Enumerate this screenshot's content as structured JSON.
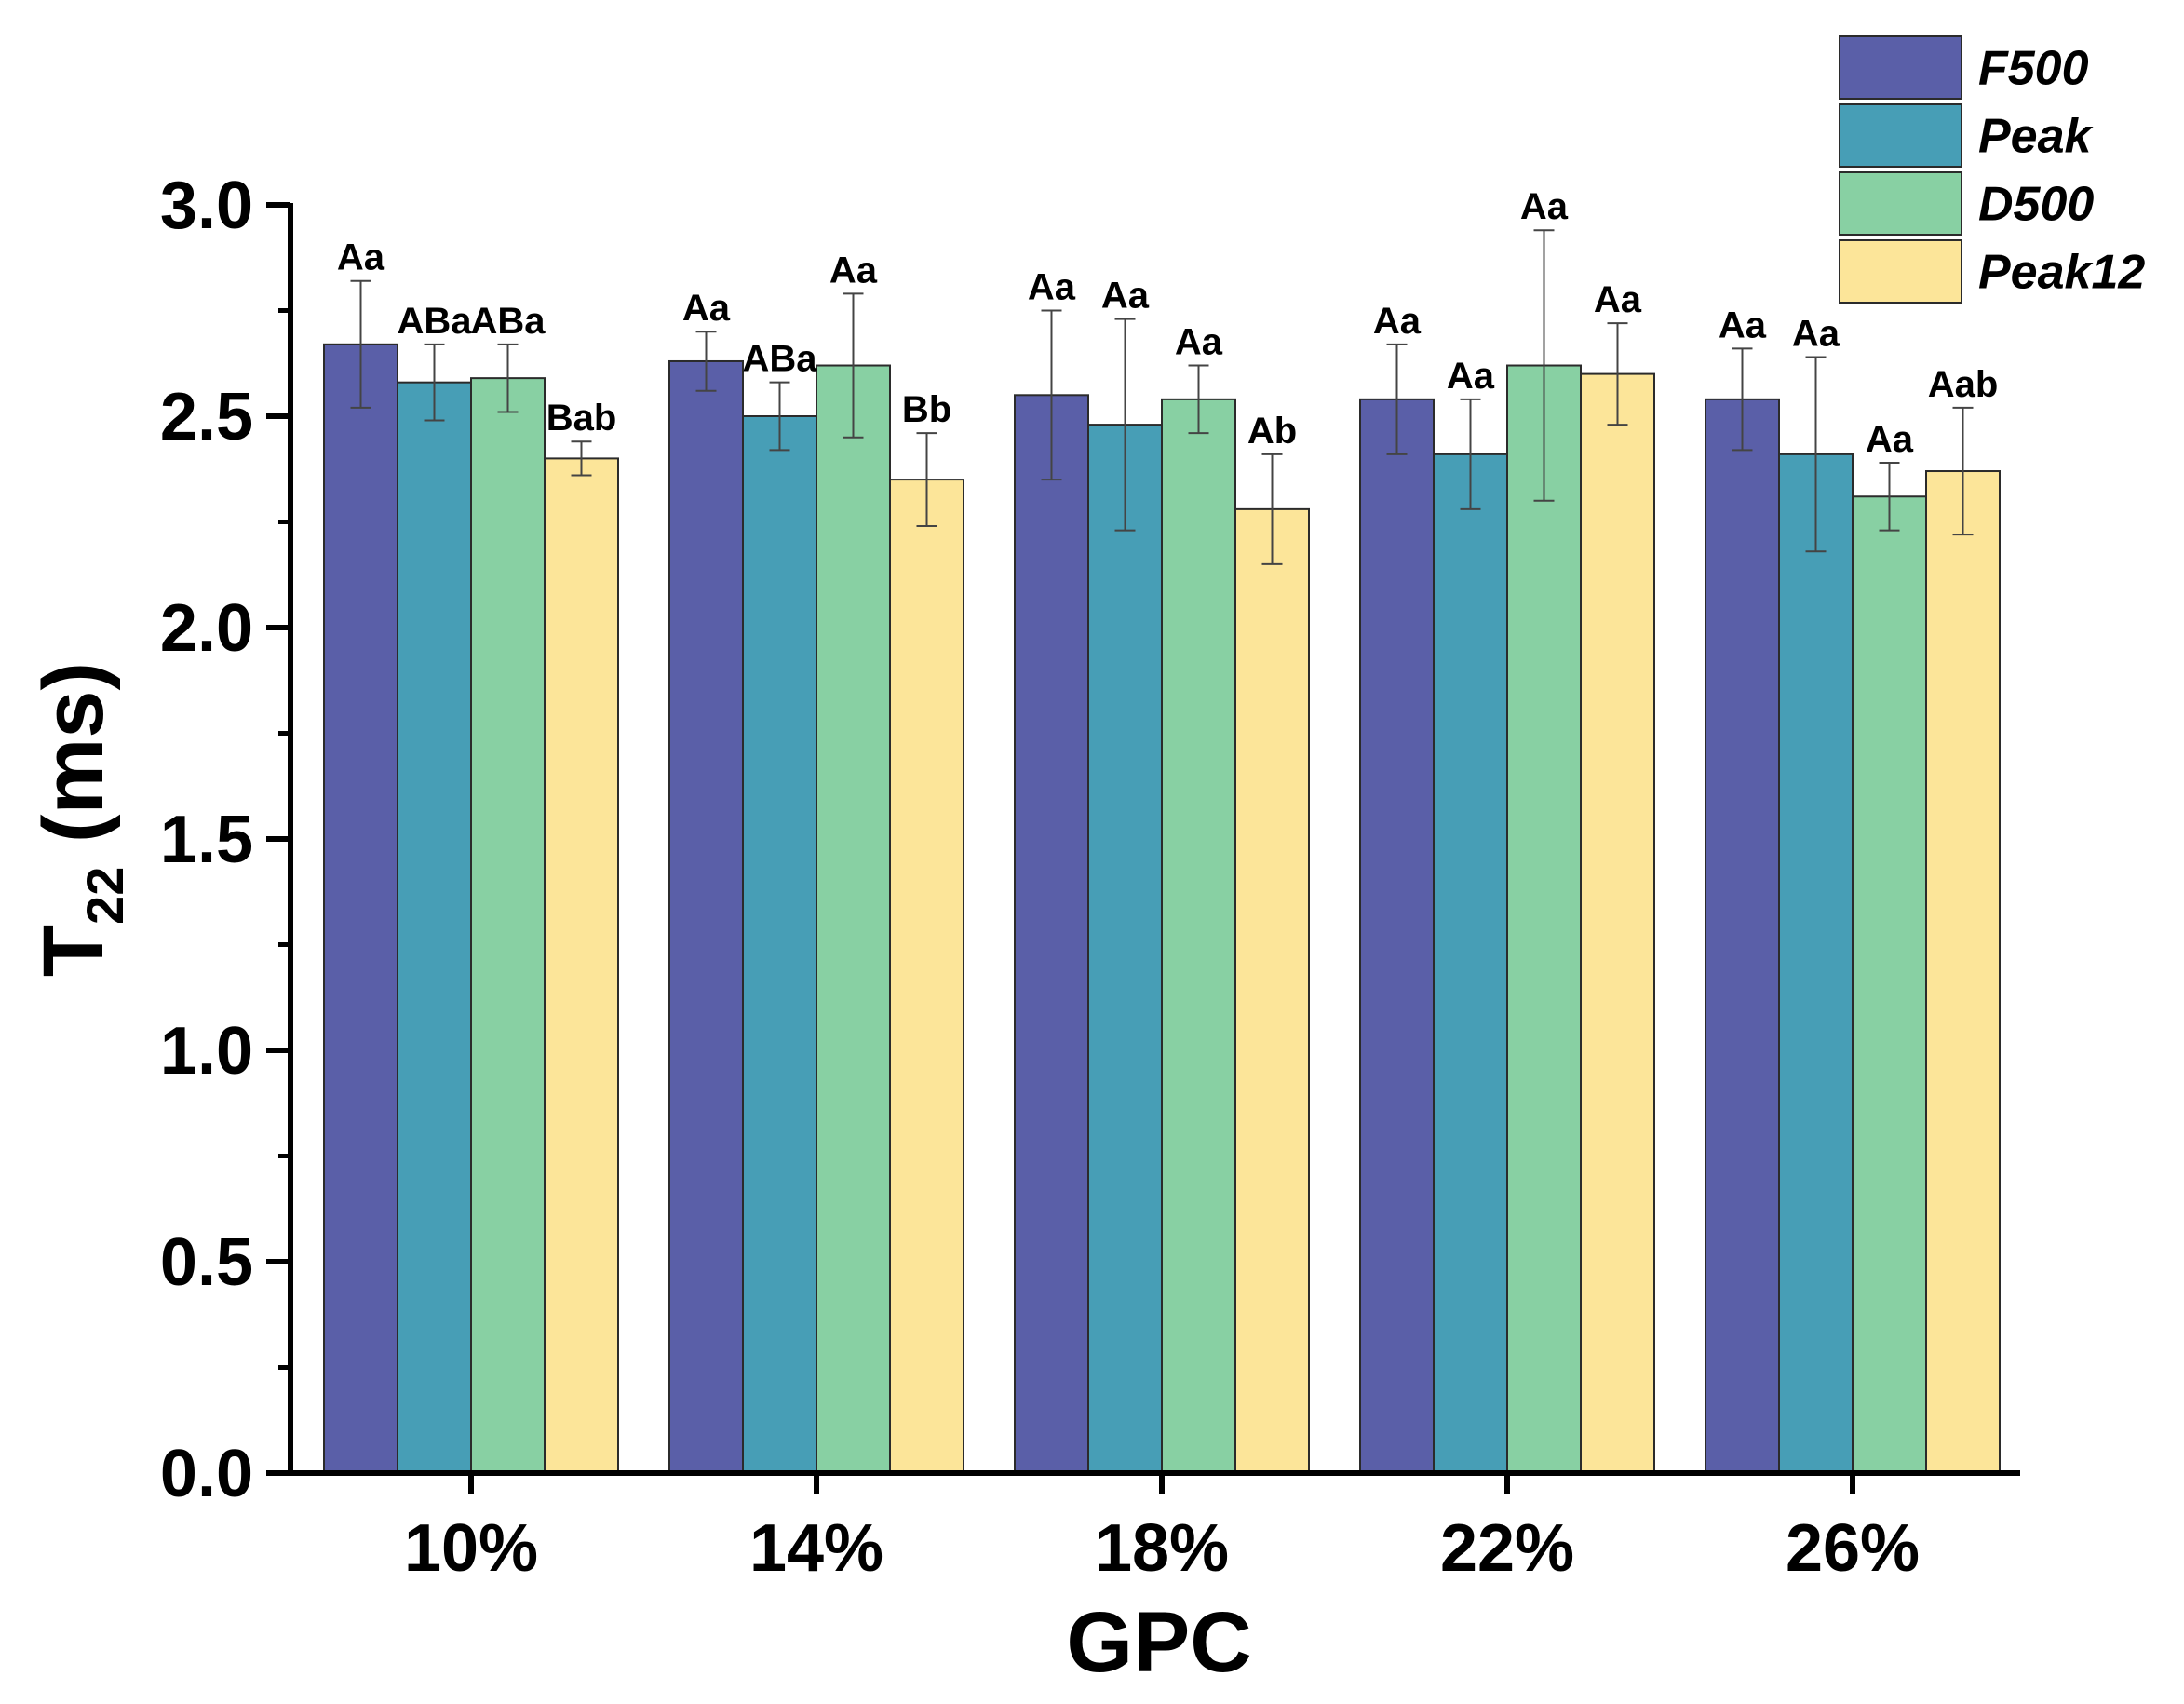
{
  "chart_data": {
    "type": "bar",
    "title": "",
    "xlabel": "GPC",
    "ylabel_main": "T",
    "ylabel_sub": "22",
    "ylabel_unit": " (ms)",
    "ylim": [
      0,
      3.0
    ],
    "y_ticks": [
      "0.0",
      "0.5",
      "1.0",
      "1.5",
      "2.0",
      "2.5",
      "3.0"
    ],
    "y_tick_values": [
      0,
      0.5,
      1.0,
      1.5,
      2.0,
      2.5,
      3.0
    ],
    "categories": [
      "10%",
      "14%",
      "18%",
      "22%",
      "26%"
    ],
    "legend_position": "top-right",
    "series": [
      {
        "name": "F500",
        "color": "#5A5FA8",
        "values": [
          2.67,
          2.63,
          2.55,
          2.54,
          2.54
        ],
        "errors": [
          0.15,
          0.07,
          0.2,
          0.13,
          0.12
        ],
        "labels": [
          "Aa",
          "Aa",
          "Aa",
          "Aa",
          "Aa"
        ]
      },
      {
        "name": "Peak",
        "color": "#479EB6",
        "values": [
          2.58,
          2.5,
          2.48,
          2.41,
          2.41
        ],
        "errors": [
          0.09,
          0.08,
          0.25,
          0.13,
          0.23
        ],
        "labels": [
          "ABa",
          "ABa",
          "Aa",
          "Aa",
          "Aa"
        ]
      },
      {
        "name": "D500",
        "color": "#88D0A3",
        "values": [
          2.59,
          2.62,
          2.54,
          2.62,
          2.31
        ],
        "errors": [
          0.08,
          0.17,
          0.08,
          0.32,
          0.08
        ],
        "labels": [
          "ABa",
          "Aa",
          "Aa",
          "Aa",
          "Aa"
        ]
      },
      {
        "name": "Peak12",
        "color": "#FCE599",
        "values": [
          2.4,
          2.35,
          2.28,
          2.6,
          2.37
        ],
        "errors": [
          0.04,
          0.11,
          0.13,
          0.12,
          0.15
        ],
        "labels": [
          "Bab",
          "Bb",
          "Ab",
          "Aa",
          "Aab"
        ]
      }
    ]
  }
}
